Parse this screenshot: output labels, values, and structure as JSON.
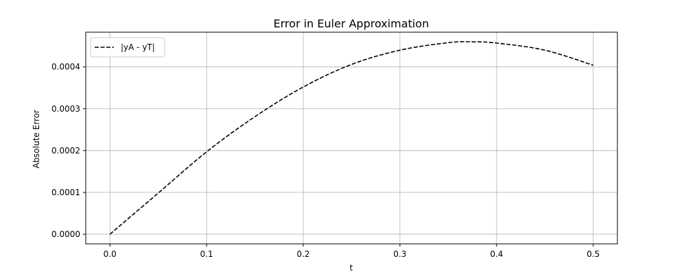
{
  "chart_data": {
    "type": "line",
    "title": "Error in Euler Approximation",
    "xlabel": "t",
    "ylabel": "Absolute Error",
    "xlim": [
      -0.025,
      0.525
    ],
    "ylim": [
      -2.3e-05,
      0.000483
    ],
    "x_ticks": [
      0.0,
      0.1,
      0.2,
      0.3,
      0.4,
      0.5
    ],
    "x_tick_labels": [
      "0.0",
      "0.1",
      "0.2",
      "0.3",
      "0.4",
      "0.5"
    ],
    "y_ticks": [
      0.0,
      0.0001,
      0.0002,
      0.0003,
      0.0004
    ],
    "y_tick_labels": [
      "0.0000",
      "0.0001",
      "0.0002",
      "0.0003",
      "0.0004"
    ],
    "grid": true,
    "legend_position": "top-left",
    "series": [
      {
        "name": "|yA - yT|",
        "color": "#000000",
        "style": "dashed",
        "x": [
          0.0,
          0.05,
          0.1,
          0.15,
          0.2,
          0.25,
          0.3,
          0.35,
          0.375,
          0.4,
          0.45,
          0.5
        ],
        "y": [
          0.0,
          9.85e-05,
          0.000197,
          0.000281,
          0.000352,
          0.000406,
          0.00044,
          0.000458,
          0.00046,
          0.000457,
          0.00044,
          0.000404
        ]
      }
    ]
  }
}
